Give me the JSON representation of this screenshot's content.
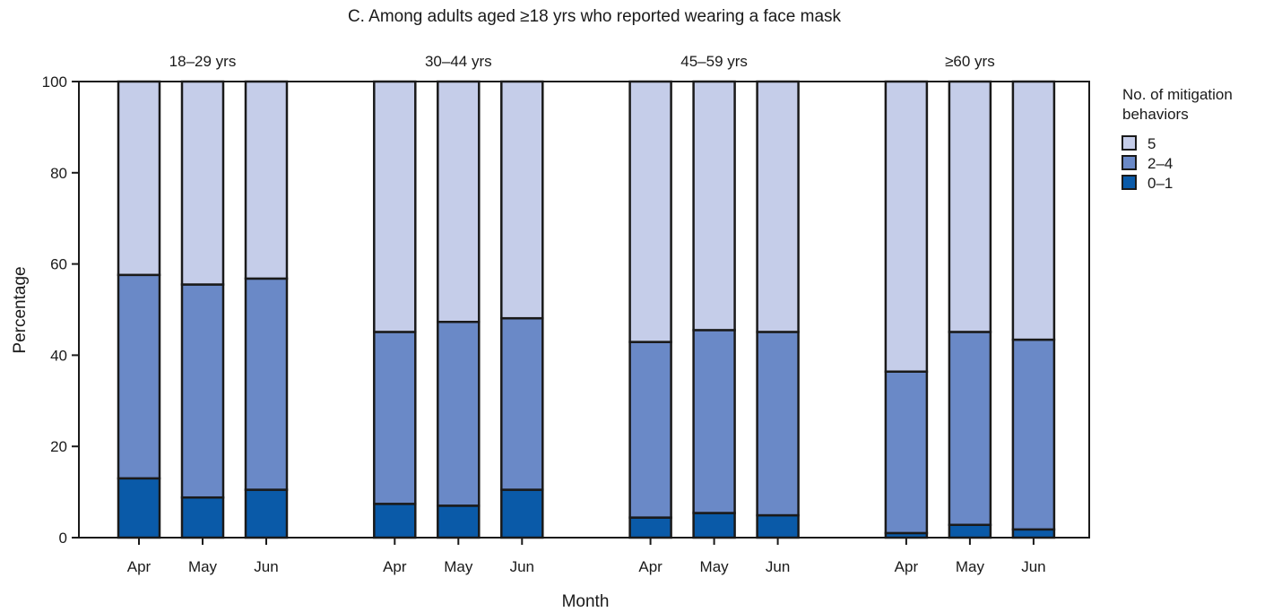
{
  "chart_data": {
    "type": "bar",
    "stacked": true,
    "title": "C. Among adults aged ≥18 yrs who reported wearing a face mask",
    "xlabel": "Month",
    "ylabel": "Percentage",
    "ylim": [
      0,
      100
    ],
    "yticks": [
      0,
      20,
      40,
      60,
      80,
      100
    ],
    "grid": false,
    "legend": {
      "title_lines": [
        "No. of mitigation",
        "behaviors"
      ],
      "placement": "right",
      "entries": [
        "5",
        "2–4",
        "0–1"
      ]
    },
    "months": [
      "Apr",
      "May",
      "Jun"
    ],
    "colors": {
      "0–1": "#0a5aa8",
      "2–4": "#6a89c7",
      "5": "#c5cde9",
      "outline": "#1a1a1a"
    },
    "groups": [
      {
        "label": "18–29 yrs",
        "series": [
          {
            "name": "0–1",
            "values": [
              13.0,
              8.8,
              10.5
            ]
          },
          {
            "name": "2–4",
            "values": [
              44.6,
              46.7,
              46.3
            ]
          },
          {
            "name": "5",
            "values": [
              42.4,
              44.5,
              43.2
            ]
          }
        ]
      },
      {
        "label": "30–44 yrs",
        "series": [
          {
            "name": "0–1",
            "values": [
              7.4,
              7.0,
              10.5
            ]
          },
          {
            "name": "2–4",
            "values": [
              37.7,
              40.3,
              37.6
            ]
          },
          {
            "name": "5",
            "values": [
              54.9,
              52.7,
              51.9
            ]
          }
        ]
      },
      {
        "label": "45–59 yrs",
        "series": [
          {
            "name": "0–1",
            "values": [
              4.4,
              5.4,
              4.9
            ]
          },
          {
            "name": "2–4",
            "values": [
              38.5,
              40.1,
              40.2
            ]
          },
          {
            "name": "5",
            "values": [
              57.1,
              54.5,
              54.9
            ]
          }
        ]
      },
      {
        "label": "≥60 yrs",
        "series": [
          {
            "name": "0–1",
            "values": [
              1.0,
              2.8,
              1.8
            ]
          },
          {
            "name": "2–4",
            "values": [
              35.4,
              42.3,
              41.6
            ]
          },
          {
            "name": "5",
            "values": [
              63.6,
              54.9,
              56.6
            ]
          }
        ]
      }
    ]
  }
}
